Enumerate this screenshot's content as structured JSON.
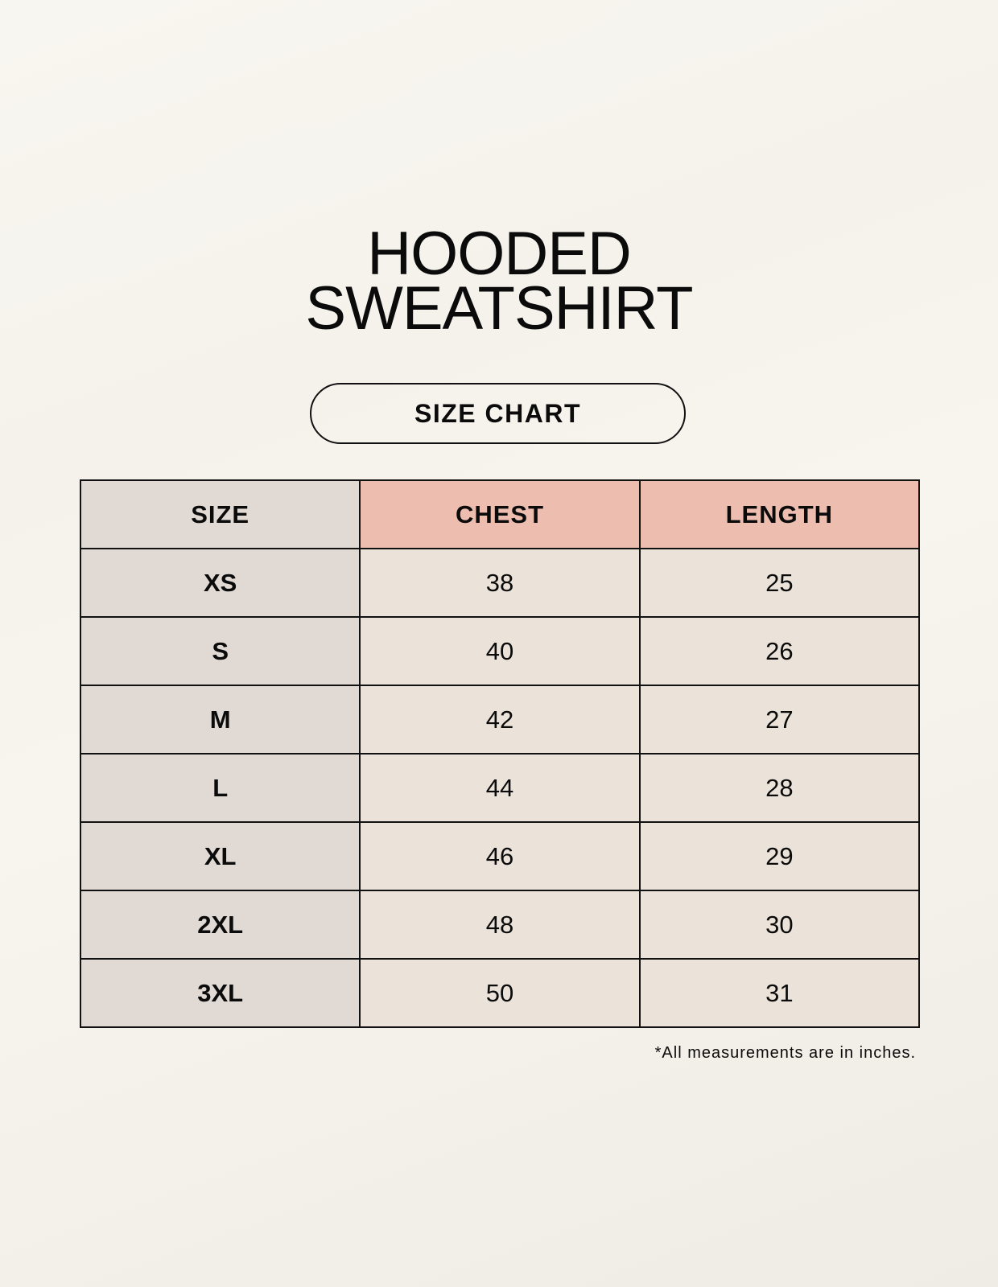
{
  "title": {
    "line1": "HOODED",
    "line2": "SWEATSHIRT"
  },
  "badge": "SIZE CHART",
  "table": {
    "headers": [
      "SIZE",
      "CHEST",
      "LENGTH"
    ],
    "rows": [
      [
        "XS",
        "38",
        "25"
      ],
      [
        "S",
        "40",
        "26"
      ],
      [
        "M",
        "42",
        "27"
      ],
      [
        "L",
        "44",
        "28"
      ],
      [
        "XL",
        "46",
        "29"
      ],
      [
        "2XL",
        "48",
        "30"
      ],
      [
        "3XL",
        "50",
        "31"
      ]
    ]
  },
  "footnote": "*All measurements are in inches.",
  "colors": {
    "size_column": "#e0d9d4",
    "header_accent": "#edbdb0",
    "value_cells": "#ebe3da"
  }
}
